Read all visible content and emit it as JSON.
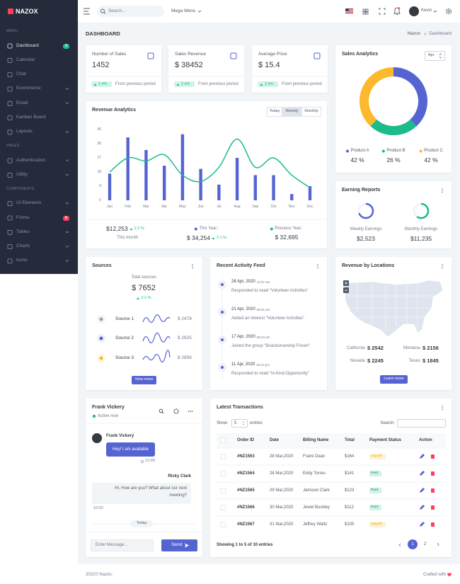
{
  "sidebar": {
    "brand": "NAZOX",
    "sections": [
      {
        "title": "MENU",
        "items": [
          {
            "label": "Dashboard",
            "badge": "3",
            "badge_color": "#1cbb8c",
            "active": true
          },
          {
            "label": "Calendar"
          },
          {
            "label": "Chat"
          },
          {
            "label": "Ecommerce",
            "submenu": true
          },
          {
            "label": "Email",
            "submenu": true
          },
          {
            "label": "Kanban Board"
          },
          {
            "label": "Layouts",
            "submenu": true
          }
        ]
      },
      {
        "title": "PAGES",
        "items": [
          {
            "label": "Authentication",
            "submenu": true
          },
          {
            "label": "Utility",
            "submenu": true
          }
        ]
      },
      {
        "title": "COMPONENTS",
        "items": [
          {
            "label": "UI Elements",
            "submenu": true
          },
          {
            "label": "Forms",
            "badge": "6",
            "badge_color": "#ff3d60"
          },
          {
            "label": "Tables",
            "submenu": true
          },
          {
            "label": "Charts",
            "submenu": true
          },
          {
            "label": "Icons",
            "submenu": true
          }
        ]
      }
    ]
  },
  "topbar": {
    "search_placeholder": "Search...",
    "mega_menu": "Mega Menu",
    "user": "Kevin"
  },
  "page": {
    "title": "DASHBOARD",
    "breadcrumb": [
      "Nazox",
      "Dashboard"
    ]
  },
  "stats": [
    {
      "label": "Number of Sales",
      "value": "1452",
      "change": "2.4%",
      "note": "From previous period"
    },
    {
      "label": "Sales Revenue",
      "value": "$ 38452",
      "change": "2.4%",
      "note": "From previous period"
    },
    {
      "label": "Average Price",
      "value": "$ 15.4",
      "change": "2.4%",
      "note": "From previous period"
    }
  ],
  "revenue": {
    "title": "Revenue Analytics",
    "tabs": [
      "Today",
      "Weekly",
      "Monthly"
    ],
    "active_tab": 1,
    "chart": {
      "type": "bar",
      "categories": [
        "Jan",
        "Feb",
        "Mar",
        "Apr",
        "May",
        "Jun",
        "Jul",
        "Aug",
        "Sep",
        "Oct",
        "Nov",
        "Dec"
      ],
      "ylim": [
        0,
        45
      ],
      "yticks": [
        0,
        9,
        18,
        27,
        36,
        45
      ],
      "grid": false,
      "series": [
        {
          "type": "bar",
          "color": "#5664d2",
          "values": [
            17,
            40,
            32,
            22,
            42,
            20,
            10,
            27,
            16,
            16,
            4,
            9
          ]
        },
        {
          "type": "line",
          "color": "#1cbb8c",
          "values": [
            18,
            27,
            25,
            29,
            16,
            12,
            21,
            39,
            21,
            27,
            16,
            8
          ]
        }
      ]
    },
    "summary": [
      {
        "value": "$12,253",
        "change": "2.2 %",
        "label": "This month"
      },
      {
        "label": "This Year :",
        "value": "$ 34,254",
        "change": "2.1 %",
        "color": "#5664d2"
      },
      {
        "label": "Previous Year :",
        "value": "$ 32,695",
        "color": "#1cbb8c"
      }
    ]
  },
  "sales_analytics": {
    "title": "Sales Analytics",
    "select": "Apr",
    "chart": {
      "type": "pie",
      "categories": [
        "Product A",
        "Product B",
        "Product C"
      ],
      "values": [
        42,
        26,
        42
      ],
      "value_labels": [
        "42 %",
        "26 %",
        "42 %"
      ],
      "colors": [
        "#5664d2",
        "#1cbb8c",
        "#fcb92c"
      ]
    }
  },
  "earning": {
    "title": "Earning Reports",
    "items": [
      {
        "label": "Weekly Earnings",
        "value": "$2,523",
        "progress": 70,
        "color": "#5664d2"
      },
      {
        "label": "Monthly Earnings",
        "value": "$11,235",
        "progress": 60,
        "color": "#1cbb8c"
      }
    ]
  },
  "sources": {
    "title": "Sources",
    "total_label": "Total sources",
    "total": "$ 7652",
    "change": "2.2 %",
    "items": [
      {
        "label": "Source 1",
        "value": "$ 2478"
      },
      {
        "label": "Source 2",
        "value": "$ 2625"
      },
      {
        "label": "Source 3",
        "value": "$ 2856"
      }
    ],
    "button": "View more"
  },
  "activity": {
    "title": "Recent Activity Feed",
    "items": [
      {
        "date": "28 Apr, 2020",
        "time": "12:07 am",
        "text": "Responded to need “Volunteer Activities”"
      },
      {
        "date": "21 Apr, 2020",
        "time": "08:01 pm",
        "text": "Added an interest “Volunteer Activities”"
      },
      {
        "date": "17 Apr, 2020",
        "time": "09:23 am",
        "text": "Joined the group “Boardsmanship Forum”"
      },
      {
        "date": "11 Apr, 2020",
        "time": "05:10 pm",
        "text": "Responded to need “In-Kind Opportunity”"
      }
    ]
  },
  "locations": {
    "title": "Revenue by Locations",
    "items": [
      {
        "label": "California:",
        "value": "$ 2542"
      },
      {
        "label": "Montana:",
        "value": "$ 2156"
      },
      {
        "label": "Nevada:",
        "value": "$ 2245"
      },
      {
        "label": "Texas:",
        "value": "$ 1845"
      }
    ],
    "button": "Learn more"
  },
  "chat": {
    "name": "Frank Vickery",
    "status": "Active now",
    "messages": [
      {
        "author": "Frank Vickery",
        "text": "Hey! I am available",
        "time": "12:09",
        "side": "left"
      },
      {
        "author": "Ricky Clark",
        "text": "Hi, How are you? What about our next meeting?",
        "time": "10:02",
        "side": "right"
      }
    ],
    "divider": "Today",
    "input_placeholder": "Enter Message...",
    "send": "Send"
  },
  "transactions": {
    "title": "Latest Transactions",
    "show_label": "Show",
    "page_size": "5",
    "entries_label": "entries",
    "search_label": "Search:",
    "columns": [
      "Order ID",
      "Date",
      "Billing Name",
      "Total",
      "Payment Status",
      "Action"
    ],
    "rows": [
      [
        "#NZ1563",
        "28 Mar,2020",
        "Frank Dean",
        "$164",
        "unpaid"
      ],
      [
        "#NZ1564",
        "28 Mar,2020",
        "Eddy Torres",
        "$141",
        "Paid"
      ],
      [
        "#NZ1565",
        "29 Mar,2020",
        "Jamison Clark",
        "$123",
        "Paid"
      ],
      [
        "#NZ1566",
        "30 Mar,2020",
        "Jewel Buckley",
        "$112",
        "Paid"
      ],
      [
        "#NZ1567",
        "31 Mar,2020",
        "Jeffrey Waltz",
        "$105",
        "unpaid"
      ]
    ],
    "status_colors": {
      "unpaid": "#fcb92c",
      "Paid": "#1cbb8c"
    },
    "info": "Showing 1 to 5 of 10 entries",
    "pages": [
      "1",
      "2"
    ]
  },
  "footer": {
    "copyright": "2021© Nazox.",
    "credit": "Crafted with"
  }
}
